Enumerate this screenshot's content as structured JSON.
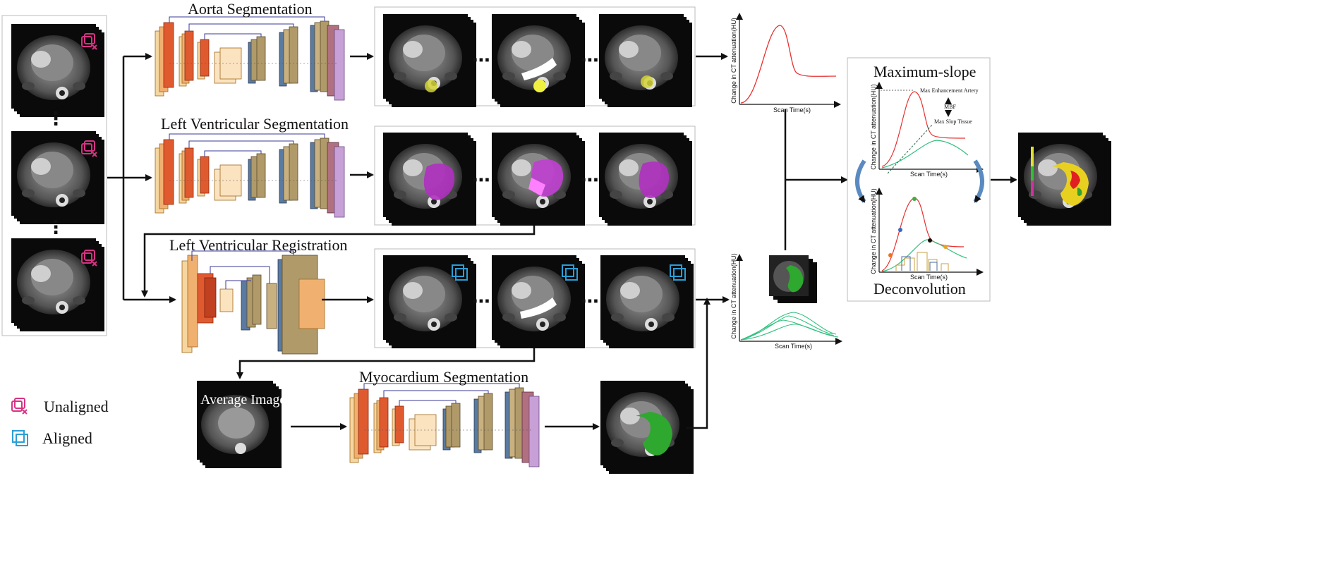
{
  "titles": {
    "aorta_seg": "Aorta Segmentation",
    "lv_seg": "Left Ventricular Segmentation",
    "lv_reg": "Left Ventricular Registration",
    "myo_seg": "Myocardium Segmentation",
    "average_image": "Average Image",
    "max_slope": "Maximum-slope",
    "deconvolution": "Deconvolution"
  },
  "legend": {
    "unaligned": "Unaligned",
    "aligned": "Aligned"
  },
  "plots": {
    "y_axis_label": "Change in CT attenuation(HU)",
    "x_axis_label": "Scan Time(s)",
    "annotations": {
      "max_enhancement": "Max Enhancement Artery",
      "mbf": "MBF",
      "max_slope_tissue": "Max Slop Tissue"
    }
  },
  "ellipsis": "⋯",
  "vellipsis": "⋮",
  "colors": {
    "unaligned_icon": "#d63384",
    "aligned_icon": "#2a9fd6",
    "aorta_mask": "#d4d43a",
    "lv_mask": "#b030c0",
    "myo_mask": "#2ea82e",
    "artery_curve": "#e83030",
    "tissue_curve": "#33c080"
  }
}
